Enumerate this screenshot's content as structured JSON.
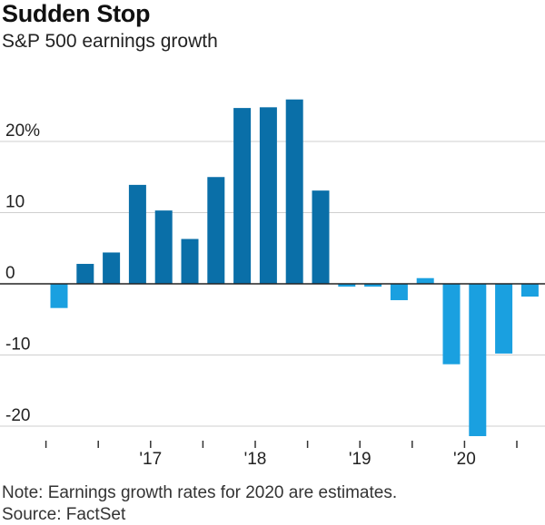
{
  "title": "Sudden Stop",
  "subtitle": "S&P 500 earnings growth",
  "note": "Note: Earnings growth rates for 2020 are estimates.",
  "source": "Source: FactSet",
  "colors": {
    "actual": "#0a6fa8",
    "estimate": "#1aa0e0",
    "grid": "#cfcfcf",
    "zero": "#222222"
  },
  "chart_data": {
    "type": "bar",
    "title": "Sudden Stop",
    "subtitle": "S&P 500 earnings growth",
    "ylim": [
      -22,
      28
    ],
    "yticks": [
      -20,
      -10,
      0,
      10,
      20
    ],
    "ytick_labels": [
      "-20",
      "-10",
      "0",
      "10",
      "20%"
    ],
    "xtick_labels": [
      "'17",
      "'18",
      "'19",
      "'20"
    ],
    "xtick_label_after_bar": [
      3,
      7,
      11,
      15
    ],
    "grid": true,
    "series": [
      {
        "values": [
          -3.4,
          2.8,
          4.4,
          13.9,
          10.3,
          6.3,
          15.0,
          24.7,
          24.8,
          25.9,
          13.1,
          -0.4,
          -0.4,
          -2.3,
          0.8,
          -11.3,
          -21.4,
          -9.8,
          -1.8
        ]
      }
    ],
    "bar_colors": [
      "estimate",
      "actual",
      "actual",
      "actual",
      "actual",
      "actual",
      "actual",
      "actual",
      "actual",
      "actual",
      "actual",
      "estimate",
      "estimate",
      "estimate",
      "estimate",
      "estimate",
      "estimate",
      "estimate",
      "estimate"
    ]
  }
}
